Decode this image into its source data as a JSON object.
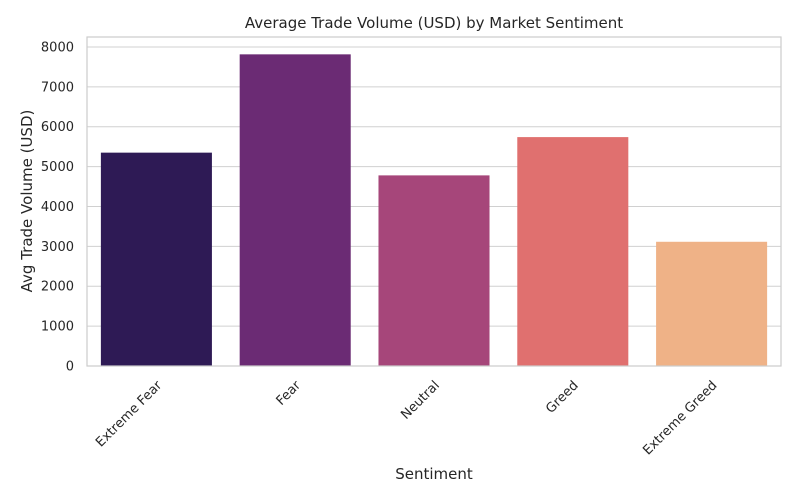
{
  "chart_data": {
    "type": "bar",
    "title": "Average Trade Volume (USD) by Market Sentiment",
    "xlabel": "Sentiment",
    "ylabel": "Avg Trade Volume (USD)",
    "categories": [
      "Extreme Fear",
      "Fear",
      "Neutral",
      "Greed",
      "Extreme Greed"
    ],
    "values": [
      5350,
      7815,
      4780,
      5740,
      3115
    ],
    "colors": [
      "#2e1a55",
      "#6b2b74",
      "#a6467a",
      "#e0706f",
      "#efb287"
    ],
    "ylim": [
      0,
      8250
    ],
    "yticks": [
      0,
      1000,
      2000,
      3000,
      4000,
      5000,
      6000,
      7000,
      8000
    ],
    "grid": true,
    "legend": "none"
  }
}
